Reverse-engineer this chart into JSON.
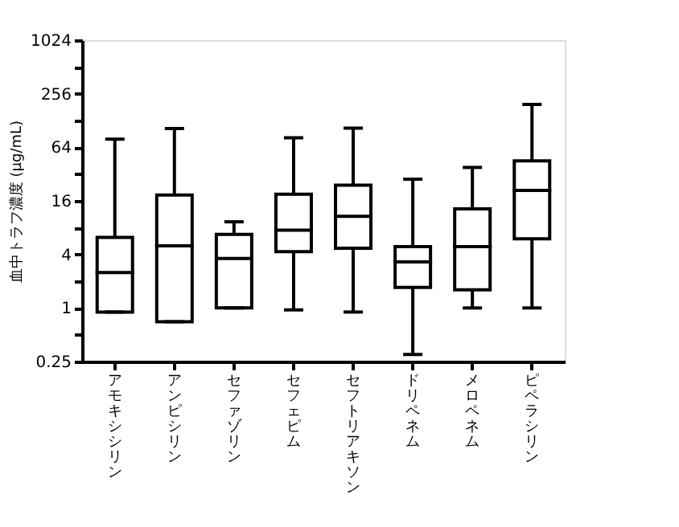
{
  "chart_data": {
    "type": "box",
    "ylabel": "血中トラフ濃度 (μg/mL)",
    "log": "y",
    "grid": false,
    "categories": [
      "アモキシシリン",
      "アンピシリン",
      "セファゾリン",
      "セフェピム",
      "セフトリアキソン",
      "ドリペネム",
      "メロペネム",
      "ピペラシリン"
    ],
    "ylim": [
      0.25,
      1024
    ],
    "yticks": [
      0.25,
      {
        "value": 0.5,
        "label": null
      },
      1,
      {
        "value": 2,
        "label": null
      },
      4,
      {
        "value": 8,
        "label": null
      },
      16,
      {
        "value": 32,
        "label": null
      },
      64,
      {
        "value": 128,
        "label": null
      },
      256,
      {
        "value": 512,
        "label": null
      },
      1024
    ],
    "boxes": [
      {
        "low": 0.9,
        "q1": 0.9,
        "median": 2.5,
        "q3": 6.2,
        "high": 79
      },
      {
        "low": 0.7,
        "q1": 0.7,
        "median": 5,
        "q3": 18.6,
        "high": 104
      },
      {
        "low": 1,
        "q1": 1,
        "median": 3.6,
        "q3": 6.7,
        "high": 9.3
      },
      {
        "low": 0.95,
        "q1": 4.3,
        "median": 7.5,
        "q3": 19,
        "high": 82
      },
      {
        "low": 0.9,
        "q1": 4.7,
        "median": 10.7,
        "q3": 24,
        "high": 105
      },
      {
        "low": 0.3,
        "q1": 1.7,
        "median": 3.3,
        "q3": 4.9,
        "high": 28
      },
      {
        "low": 1,
        "q1": 1.6,
        "median": 4.9,
        "q3": 13,
        "high": 38
      },
      {
        "low": 1,
        "q1": 6,
        "median": 21,
        "q3": 45,
        "high": 194
      }
    ]
  }
}
